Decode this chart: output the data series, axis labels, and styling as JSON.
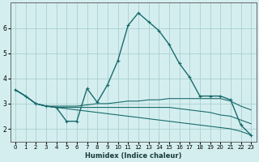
{
  "xlabel": "Humidex (Indice chaleur)",
  "bg_color": "#d4eef0",
  "grid_color": "#aacfcf",
  "line_color": "#1a6b6b",
  "xlim": [
    -0.5,
    23.5
  ],
  "ylim": [
    1.5,
    7.0
  ],
  "yticks": [
    2,
    3,
    4,
    5,
    6
  ],
  "xticks": [
    0,
    1,
    2,
    3,
    4,
    5,
    6,
    7,
    8,
    9,
    10,
    11,
    12,
    13,
    14,
    15,
    16,
    17,
    18,
    19,
    20,
    21,
    22,
    23
  ],
  "series": [
    {
      "x": [
        0,
        1,
        2,
        3,
        4,
        5,
        6,
        7,
        8,
        9,
        10,
        11,
        12,
        13,
        14,
        15,
        16,
        17,
        18,
        19,
        20,
        21,
        22,
        23
      ],
      "y": [
        3.55,
        3.3,
        3.0,
        2.9,
        2.85,
        2.3,
        2.3,
        3.6,
        3.05,
        3.75,
        4.7,
        6.1,
        6.6,
        6.25,
        5.9,
        5.35,
        4.6,
        4.05,
        3.3,
        3.3,
        3.3,
        3.15,
        2.15,
        1.75
      ],
      "linestyle": "-",
      "linewidth": 1.0,
      "marker": true
    },
    {
      "x": [
        0,
        1,
        2,
        3,
        4,
        5,
        6,
        7,
        8,
        9,
        10,
        11,
        12,
        13,
        14,
        15,
        16,
        17,
        18,
        19,
        20,
        21,
        22,
        23
      ],
      "y": [
        3.55,
        3.3,
        3.0,
        2.9,
        2.9,
        2.9,
        2.9,
        2.95,
        3.0,
        3.0,
        3.05,
        3.1,
        3.1,
        3.15,
        3.15,
        3.2,
        3.2,
        3.2,
        3.2,
        3.2,
        3.2,
        3.1,
        2.9,
        2.75
      ],
      "linestyle": "-",
      "linewidth": 0.8,
      "marker": false
    },
    {
      "x": [
        0,
        1,
        2,
        3,
        4,
        5,
        6,
        7,
        8,
        9,
        10,
        11,
        12,
        13,
        14,
        15,
        16,
        17,
        18,
        19,
        20,
        21,
        22,
        23
      ],
      "y": [
        3.55,
        3.3,
        3.0,
        2.9,
        2.85,
        2.85,
        2.85,
        2.85,
        2.85,
        2.85,
        2.85,
        2.85,
        2.85,
        2.85,
        2.85,
        2.85,
        2.8,
        2.75,
        2.7,
        2.65,
        2.55,
        2.5,
        2.35,
        2.2
      ],
      "linestyle": "-",
      "linewidth": 0.8,
      "marker": false
    },
    {
      "x": [
        0,
        1,
        2,
        3,
        4,
        5,
        6,
        7,
        8,
        9,
        10,
        11,
        12,
        13,
        14,
        15,
        16,
        17,
        18,
        19,
        20,
        21,
        22,
        23
      ],
      "y": [
        3.55,
        3.3,
        3.0,
        2.9,
        2.85,
        2.8,
        2.75,
        2.7,
        2.65,
        2.6,
        2.55,
        2.5,
        2.45,
        2.4,
        2.35,
        2.3,
        2.25,
        2.2,
        2.15,
        2.1,
        2.05,
        2.0,
        1.9,
        1.75
      ],
      "linestyle": "-",
      "linewidth": 0.8,
      "marker": false
    }
  ]
}
